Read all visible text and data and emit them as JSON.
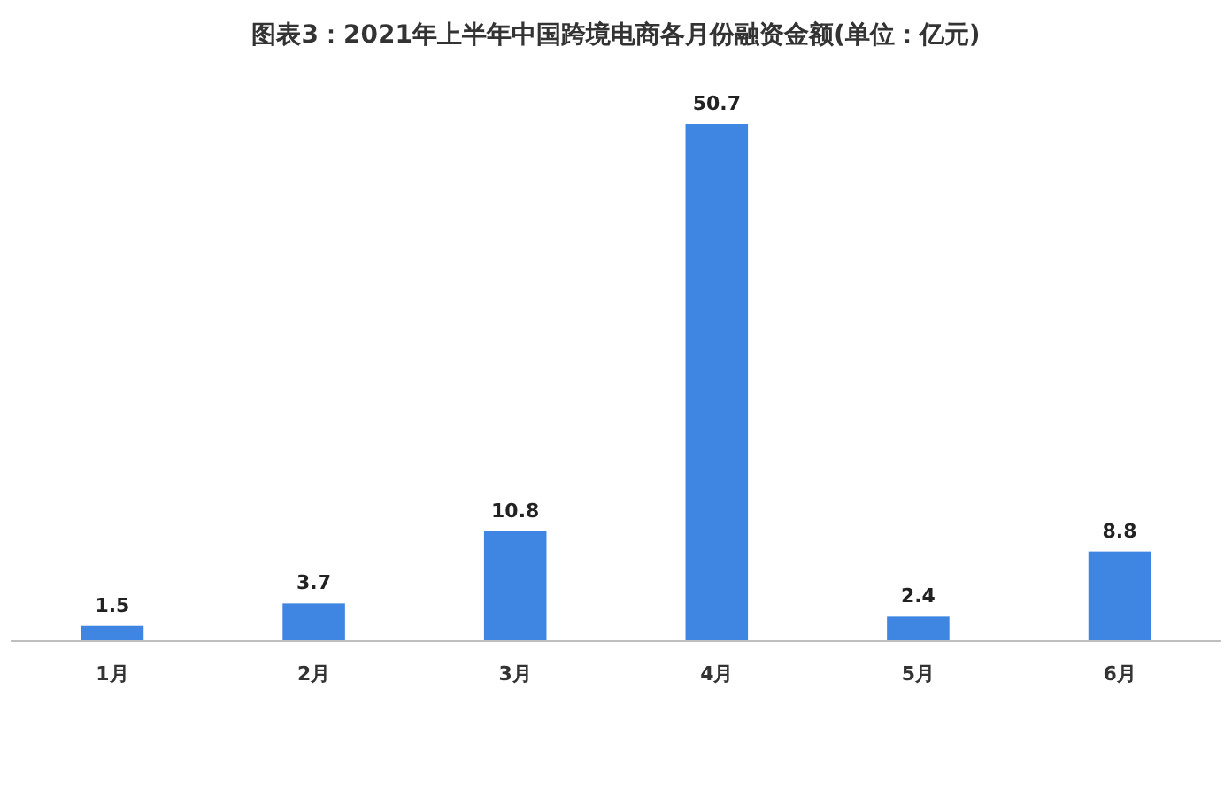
{
  "chart_data": {
    "type": "bar",
    "title": "图表3：2021年上半年中国跨境电商各月份融资金额(单位：亿元)",
    "categories": [
      "1月",
      "2月",
      "3月",
      "4月",
      "5月",
      "6月"
    ],
    "values": [
      1.5,
      3.7,
      10.8,
      50.7,
      2.4,
      8.8
    ],
    "color": "#3f86e3",
    "data_labels": true
  }
}
